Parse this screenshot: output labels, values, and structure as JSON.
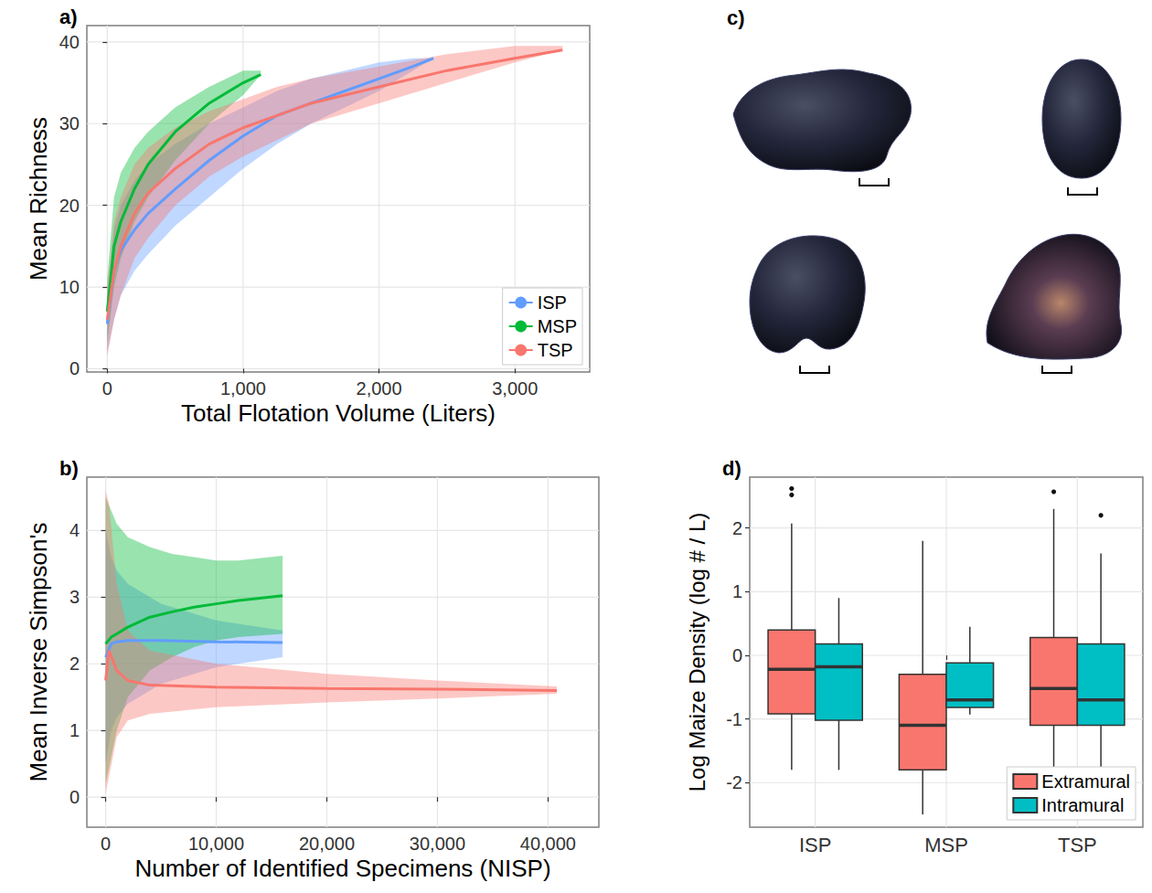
{
  "chart_data": [
    {
      "panel": "a)",
      "type": "line",
      "x_label": "Total Flotation Volume (Liters)",
      "y_label": "Mean Richness",
      "xlim": [
        -150,
        3550
      ],
      "xticks": [
        0,
        {
          "value": 1000,
          "label": "1,000"
        },
        {
          "value": 2000,
          "label": "2,000"
        },
        {
          "value": 3000,
          "label": "3,000"
        }
      ],
      "ylim": [
        -0.4,
        42
      ],
      "yticks": [
        0,
        10,
        20,
        30,
        40
      ],
      "grid": true,
      "legend": "bottom-right",
      "series": [
        {
          "name": "ISP",
          "color": "#619CFF",
          "x": [
            0,
            50,
            100,
            200,
            300,
            500,
            750,
            1000,
            1250,
            1500,
            1750,
            2000,
            2250,
            2400
          ],
          "values": [
            5.5,
            12,
            14.5,
            17,
            19,
            22,
            25.5,
            28.5,
            31,
            32.5,
            34,
            35.5,
            37,
            38
          ],
          "lower": [
            2,
            6,
            9,
            12,
            14,
            17.5,
            21,
            24.5,
            27.5,
            30,
            32,
            34,
            36.5,
            38
          ],
          "upper": [
            9,
            17,
            20,
            23,
            25,
            27.5,
            30,
            32,
            34,
            35.5,
            36.5,
            37.5,
            38,
            38
          ]
        },
        {
          "name": "MSP",
          "color": "#00BA38",
          "x": [
            0,
            50,
            100,
            200,
            300,
            500,
            750,
            1000,
            1130
          ],
          "values": [
            7,
            15,
            18,
            22,
            25,
            29,
            32.5,
            35,
            36
          ],
          "lower": [
            3,
            10,
            13.5,
            18,
            21,
            25.5,
            30,
            33.5,
            36
          ],
          "upper": [
            11,
            21,
            24,
            27,
            29,
            32,
            34.5,
            36.5,
            36.5
          ]
        },
        {
          "name": "TSP",
          "color": "#F8766D",
          "x": [
            0,
            50,
            100,
            200,
            300,
            500,
            750,
            1000,
            1250,
            1500,
            2000,
            2500,
            3000,
            3350
          ],
          "values": [
            6,
            12,
            15,
            19,
            21.5,
            24.5,
            27.5,
            29.5,
            31,
            32.5,
            34.5,
            36.5,
            38,
            39
          ],
          "lower": [
            1.5,
            6,
            9,
            13.5,
            16,
            20,
            23.5,
            26,
            28,
            30,
            32.5,
            35,
            37.5,
            39
          ],
          "upper": [
            10,
            18,
            21,
            25,
            27,
            29.5,
            31.5,
            33,
            34.5,
            35.5,
            37,
            38.5,
            39.5,
            39.5
          ]
        }
      ]
    },
    {
      "panel": "b)",
      "type": "line",
      "x_label": "Number of Identified Specimens (NISP)",
      "y_label": "Mean Inverse Simpson's",
      "xlim": [
        -1700,
        44600
      ],
      "xticks": [
        0,
        {
          "value": 10000,
          "label": "10,000"
        },
        {
          "value": 20000,
          "label": "20,000"
        },
        {
          "value": 30000,
          "label": "30,000"
        },
        {
          "value": 40000,
          "label": "40,000"
        }
      ],
      "ylim": [
        -0.45,
        4.8
      ],
      "yticks": [
        0,
        1,
        2,
        3,
        4
      ],
      "grid": true,
      "series": [
        {
          "name": "ISP",
          "color": "#619CFF",
          "x": [
            0,
            500,
            1000,
            2000,
            5000,
            10000,
            16000
          ],
          "values": [
            2.1,
            2.3,
            2.33,
            2.35,
            2.35,
            2.33,
            2.32
          ],
          "lower": [
            0.5,
            1.0,
            1.2,
            1.4,
            1.7,
            1.95,
            2.1
          ],
          "upper": [
            4.0,
            3.6,
            3.4,
            3.2,
            2.9,
            2.65,
            2.5
          ]
        },
        {
          "name": "MSP",
          "color": "#00BA38",
          "x": [
            0,
            500,
            1000,
            2000,
            4000,
            6000,
            8000,
            10000,
            12000,
            16000
          ],
          "values": [
            2.3,
            2.4,
            2.45,
            2.55,
            2.7,
            2.78,
            2.85,
            2.9,
            2.95,
            3.02
          ],
          "lower": [
            0.2,
            0.6,
            1.0,
            1.5,
            1.9,
            2.1,
            2.25,
            2.35,
            2.4,
            2.45
          ],
          "upper": [
            4.5,
            4.3,
            4.1,
            3.9,
            3.75,
            3.65,
            3.6,
            3.55,
            3.55,
            3.62
          ]
        },
        {
          "name": "TSP",
          "color": "#F8766D",
          "x": [
            0,
            300,
            1000,
            2000,
            4000,
            10000,
            20000,
            30000,
            40800
          ],
          "values": [
            1.75,
            2.2,
            1.9,
            1.75,
            1.68,
            1.65,
            1.63,
            1.62,
            1.6
          ],
          "lower": [
            0.05,
            0.3,
            0.9,
            1.15,
            1.25,
            1.35,
            1.42,
            1.48,
            1.55
          ],
          "upper": [
            4.6,
            4.4,
            3.2,
            2.5,
            2.2,
            2.0,
            1.85,
            1.75,
            1.66
          ]
        }
      ]
    },
    {
      "panel": "d)",
      "type": "boxplot",
      "y_label": "Log Maize Density (log # / L)",
      "categories": [
        "ISP",
        "MSP",
        "TSP"
      ],
      "ylim": [
        -2.7,
        2.8
      ],
      "yticks": [
        -2,
        -1,
        0,
        1,
        2
      ],
      "grid": true,
      "legend": "bottom-right",
      "series": [
        {
          "name": "Extramural",
          "color": "#F8766D",
          "values": [
            [
              -1.8,
              -0.92,
              -0.22,
              0.4,
              2.07
            ],
            [
              -2.5,
              -1.8,
              -1.1,
              -0.3,
              1.8
            ],
            [
              -1.8,
              -1.1,
              -0.52,
              0.28,
              2.3
            ]
          ],
          "outliers": [
            [
              2.52,
              2.62
            ],
            [],
            [
              2.57
            ]
          ]
        },
        {
          "name": "Intramural",
          "color": "#00BFC4",
          "values": [
            [
              -1.8,
              -1.02,
              -0.18,
              0.18,
              0.9
            ],
            [
              -0.93,
              -0.82,
              -0.7,
              -0.12,
              0.45
            ],
            [
              -1.8,
              -1.1,
              -0.7,
              0.18,
              1.6
            ]
          ],
          "outliers": [
            [],
            [],
            [
              2.2
            ]
          ]
        }
      ]
    }
  ],
  "images": {
    "panel": "c)",
    "count": 4
  }
}
